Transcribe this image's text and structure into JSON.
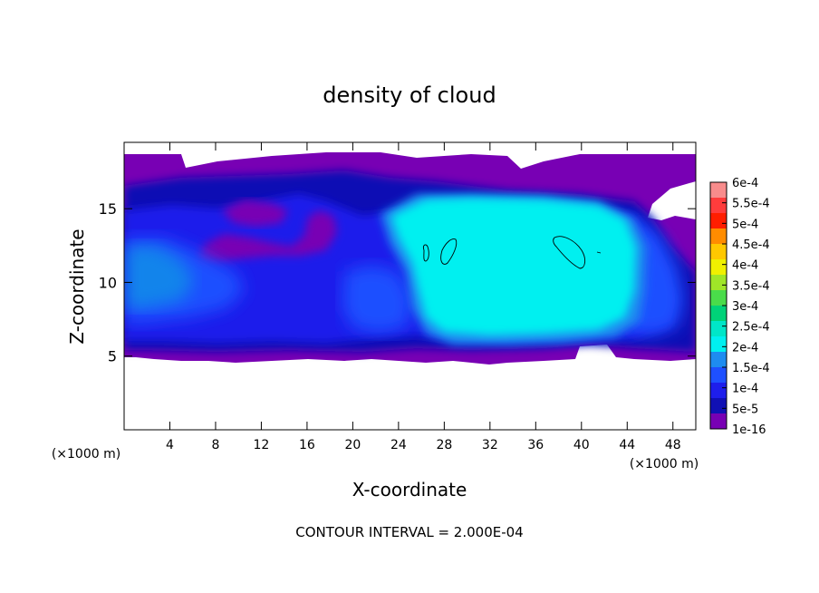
{
  "chart_data": {
    "type": "contour",
    "title": "density of cloud",
    "xlabel": "X-coordinate",
    "ylabel": "Z-coordinate",
    "x_unit": "(×1000 m)",
    "z_unit": "(×1000 m)",
    "xlim": [
      0,
      50
    ],
    "zlim": [
      0,
      19.5
    ],
    "x_ticks": [
      4,
      8,
      12,
      16,
      20,
      24,
      28,
      32,
      36,
      40,
      44,
      48
    ],
    "z_ticks": [
      5,
      10,
      15
    ],
    "footer": "CONTOUR INTERVAL = 2.000E-04",
    "colorbar": {
      "labels": [
        "6e-4",
        "5.5e-4",
        "5e-4",
        "4.5e-4",
        "4e-4",
        "3.5e-4",
        "3e-4",
        "2.5e-4",
        "2e-4",
        "1.5e-4",
        "1e-4",
        "5e-5",
        "1e-16"
      ],
      "colors": [
        "#f88c8c",
        "#ff3c3c",
        "#ff1e00",
        "#ff8c00",
        "#ffc800",
        "#f0f000",
        "#a0e628",
        "#4adc4a",
        "#00d278",
        "#00e6c8",
        "#00f0f0",
        "#1e8cf0",
        "#1e50ff",
        "#1e1eeb",
        "#1010b4",
        "#7800b4"
      ]
    },
    "regions": [
      {
        "level": "1e-16",
        "description": "purple band",
        "x": [
          0,
          50
        ],
        "z": [
          4.8,
          19
        ]
      },
      {
        "level": "2e-4",
        "description": "cyan core",
        "x": [
          23,
          44
        ],
        "z": [
          5.5,
          16.2
        ]
      }
    ],
    "contour_lines": [
      {
        "level": "2e-4",
        "center": [
          26.3,
          12.2
        ]
      },
      {
        "level": "2e-4",
        "center": [
          28.6,
          12.3
        ]
      },
      {
        "level": "2e-4",
        "center": [
          39.2,
          12.3
        ]
      }
    ]
  }
}
